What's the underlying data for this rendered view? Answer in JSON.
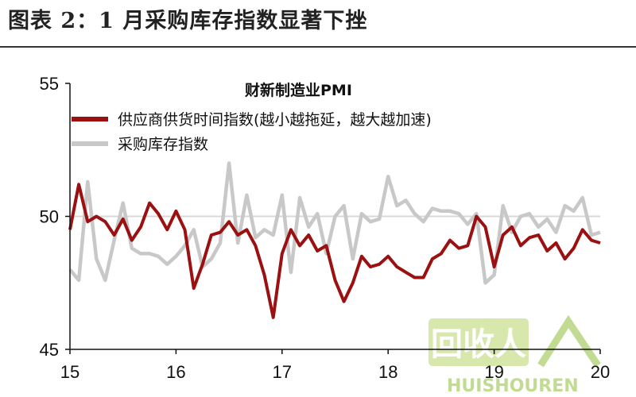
{
  "figure_title": "图表 2：1 月采购库存指数显著下挫",
  "watermark": {
    "brand": "回收人",
    "latin": "HUISHOUREN"
  },
  "colors": {
    "supplier": "#9b1010",
    "inventory": "#c8c8c8",
    "reference": "#d8d8d8",
    "axis": "#111111"
  },
  "chart_data": {
    "type": "line",
    "title": "财新制造业PMI",
    "xlabel": "",
    "ylabel": "",
    "ylim": [
      45,
      55
    ],
    "yticks": [
      45,
      50,
      55
    ],
    "xlim": [
      2015,
      2020
    ],
    "xticks": [
      {
        "value": 2015,
        "label": "15"
      },
      {
        "value": 2016,
        "label": "16"
      },
      {
        "value": 2017,
        "label": "17"
      },
      {
        "value": 2018,
        "label": "18"
      },
      {
        "value": 2019,
        "label": "19"
      },
      {
        "value": 2020,
        "label": "20"
      }
    ],
    "reference_line": 50,
    "grid": false,
    "legend_position": "top",
    "series": [
      {
        "name": "供应商供货时间指数(越小越拖延，越大越加速)",
        "color": "#9b1010",
        "x": [
          2015.0,
          2015.083,
          2015.167,
          2015.25,
          2015.333,
          2015.417,
          2015.5,
          2015.583,
          2015.667,
          2015.75,
          2015.833,
          2015.917,
          2016.0,
          2016.083,
          2016.167,
          2016.25,
          2016.333,
          2016.417,
          2016.5,
          2016.583,
          2016.667,
          2016.75,
          2016.833,
          2016.917,
          2017.0,
          2017.083,
          2017.167,
          2017.25,
          2017.333,
          2017.417,
          2017.5,
          2017.583,
          2017.667,
          2017.75,
          2017.833,
          2017.917,
          2018.0,
          2018.083,
          2018.167,
          2018.25,
          2018.333,
          2018.417,
          2018.5,
          2018.583,
          2018.667,
          2018.75,
          2018.833,
          2018.917,
          2019.0,
          2019.083,
          2019.167,
          2019.25,
          2019.333,
          2019.417,
          2019.5,
          2019.583,
          2019.667,
          2019.75,
          2019.833,
          2019.917,
          2020.0
        ],
        "y": [
          49.5,
          51.2,
          49.8,
          50.0,
          49.8,
          49.3,
          49.9,
          49.1,
          49.6,
          50.5,
          50.1,
          49.5,
          50.2,
          49.5,
          47.3,
          48.2,
          49.3,
          49.4,
          49.8,
          49.3,
          49.5,
          48.9,
          47.8,
          46.2,
          48.6,
          49.5,
          48.9,
          49.3,
          48.7,
          48.9,
          47.6,
          46.8,
          47.5,
          48.5,
          48.1,
          48.2,
          48.5,
          48.1,
          47.9,
          47.7,
          47.7,
          48.4,
          48.6,
          49.1,
          48.8,
          48.9,
          50.0,
          49.6,
          48.1,
          49.3,
          49.6,
          48.9,
          49.2,
          49.3,
          48.7,
          49.0,
          48.4,
          48.8,
          49.5,
          49.1,
          49.0
        ]
      },
      {
        "name": "采购库存指数",
        "color": "#c8c8c8",
        "x": [
          2015.0,
          2015.083,
          2015.167,
          2015.25,
          2015.333,
          2015.417,
          2015.5,
          2015.583,
          2015.667,
          2015.75,
          2015.833,
          2015.917,
          2016.0,
          2016.083,
          2016.167,
          2016.25,
          2016.333,
          2016.417,
          2016.5,
          2016.583,
          2016.667,
          2016.75,
          2016.833,
          2016.917,
          2017.0,
          2017.083,
          2017.167,
          2017.25,
          2017.333,
          2017.417,
          2017.5,
          2017.583,
          2017.667,
          2017.75,
          2017.833,
          2017.917,
          2018.0,
          2018.083,
          2018.167,
          2018.25,
          2018.333,
          2018.417,
          2018.5,
          2018.583,
          2018.667,
          2018.75,
          2018.833,
          2018.917,
          2019.0,
          2019.083,
          2019.167,
          2019.25,
          2019.333,
          2019.417,
          2019.5,
          2019.583,
          2019.667,
          2019.75,
          2019.833,
          2019.917,
          2020.0
        ],
        "y": [
          48.0,
          47.6,
          51.3,
          48.4,
          47.6,
          49.1,
          50.5,
          48.8,
          48.6,
          48.6,
          48.5,
          48.2,
          48.5,
          48.9,
          49.5,
          48.1,
          48.4,
          49.0,
          52.0,
          49.0,
          50.8,
          49.2,
          49.5,
          49.3,
          50.8,
          47.9,
          50.7,
          49.6,
          50.1,
          48.6,
          50.0,
          50.4,
          48.4,
          50.1,
          49.8,
          49.9,
          51.5,
          50.4,
          50.6,
          50.1,
          49.8,
          50.3,
          50.2,
          50.2,
          50.1,
          49.7,
          50.1,
          47.5,
          47.8,
          50.4,
          49.4,
          50.0,
          50.1,
          49.6,
          49.9,
          49.4,
          50.4,
          50.2,
          50.7,
          49.3,
          49.4
        ]
      }
    ]
  }
}
